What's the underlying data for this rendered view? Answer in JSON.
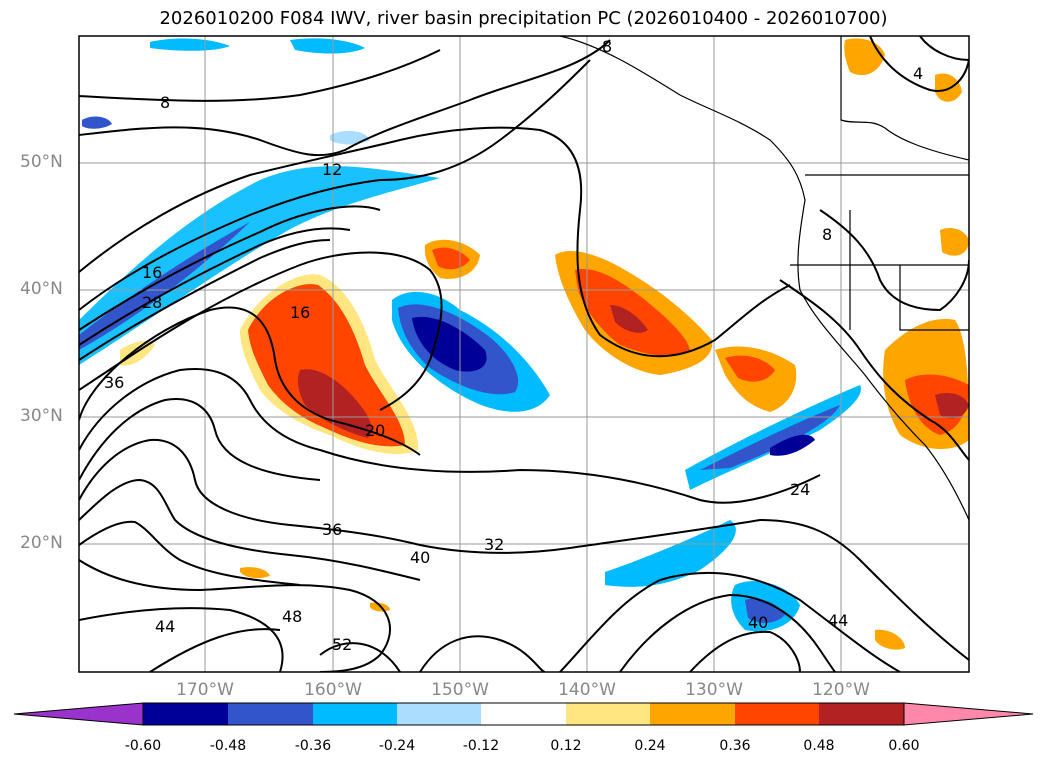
{
  "title": "2026010200 F084 IWV, river basin precipitation PC (2026010400 - 2026010700)",
  "lat_labels": [
    "50°N",
    "40°N",
    "30°N",
    "20°N"
  ],
  "lon_labels": [
    "170°W",
    "160°W",
    "150°W",
    "140°W",
    "130°W",
    "120°W"
  ],
  "contour_labels": [
    "8",
    "8",
    "12",
    "16",
    "28",
    "36",
    "16",
    "20",
    "24",
    "32",
    "36",
    "40",
    "44",
    "48",
    "52",
    "40",
    "44",
    "4",
    "8"
  ],
  "colorbar": {
    "colors": [
      "#9933cc",
      "#000099",
      "#3355cc",
      "#00bbff",
      "#aaddff",
      "#ffffff",
      "#ffe680",
      "#ffa500",
      "#ff4500",
      "#b22222",
      "#ff88aa"
    ],
    "ticks": [
      "-0.60",
      "-0.48",
      "-0.36",
      "-0.24",
      "-0.12",
      "0.12",
      "0.24",
      "0.36",
      "0.48",
      "0.60"
    ]
  },
  "colors": {
    "contour": "#000000",
    "grid": "#999999",
    "label": "#888888"
  }
}
